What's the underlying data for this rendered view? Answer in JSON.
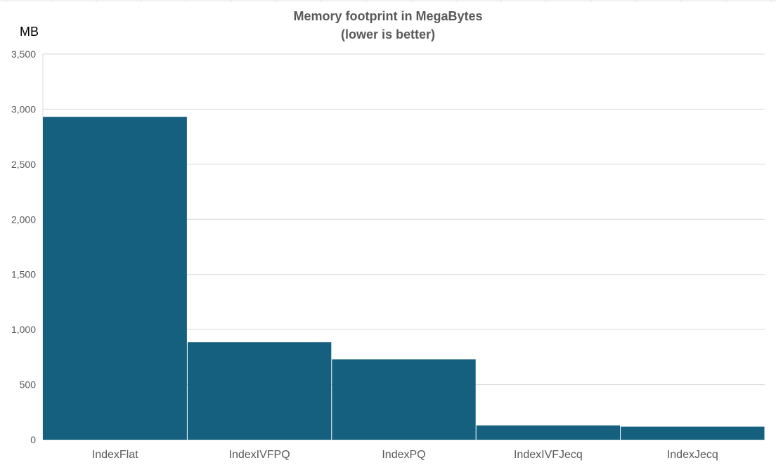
{
  "chart_data": {
    "type": "bar",
    "title": "Memory footprint in MegaBytes",
    "subtitle": "(lower is better)",
    "xlabel": "",
    "ylabel": "MB",
    "categories": [
      "IndexFlat",
      "IndexIVFPQ",
      "IndexPQ",
      "IndexIVFJecq",
      "IndexJecq"
    ],
    "values": [
      2930,
      885,
      730,
      130,
      118
    ],
    "ylim": [
      0,
      3500
    ],
    "yticks": [
      0,
      500,
      1000,
      1500,
      2000,
      2500,
      3000,
      3500
    ],
    "ytick_labels": [
      "0",
      "500",
      "1,000",
      "1,500",
      "2,000",
      "2,500",
      "3,000",
      "3,500"
    ],
    "grid": true,
    "legend": "none",
    "colors": {
      "bar": "#16607f",
      "grid": "#d9d9d9",
      "axis_text": "#595959",
      "title": "#595959"
    }
  }
}
